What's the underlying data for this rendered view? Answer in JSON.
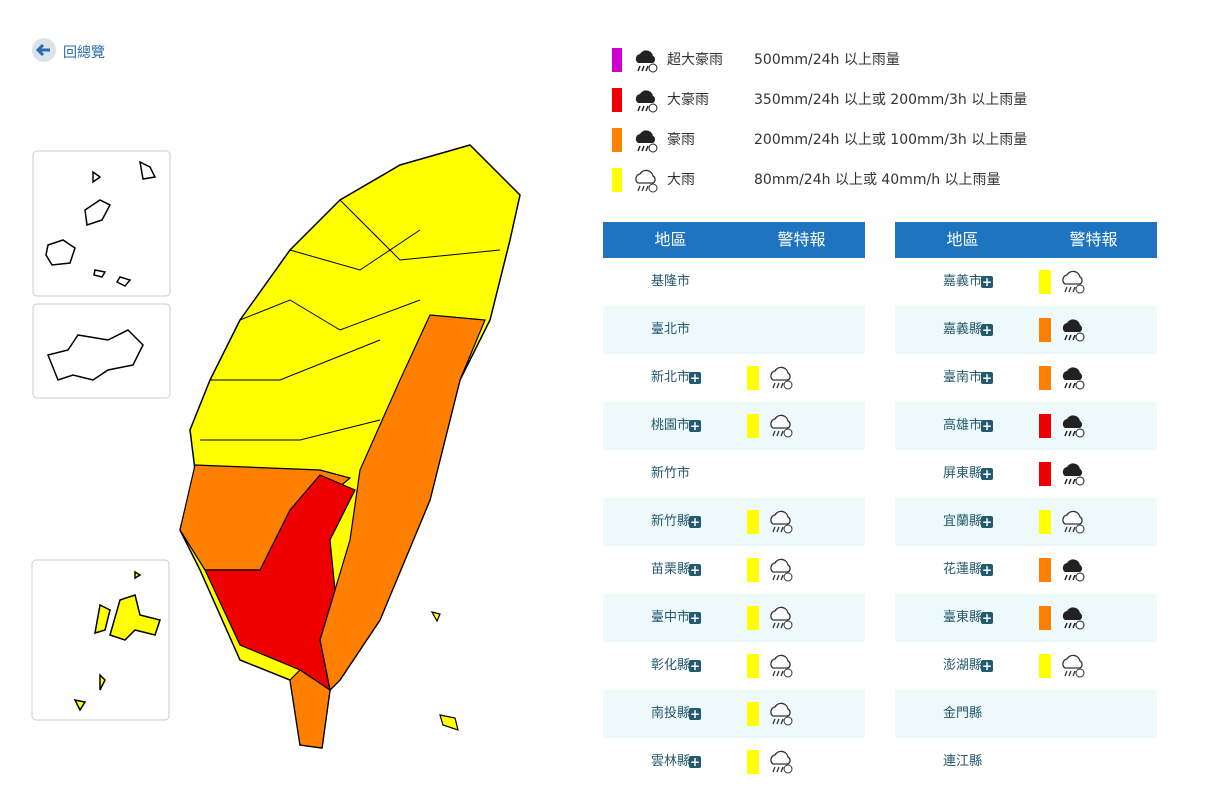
{
  "back_link": "回總覽",
  "legend": [
    {
      "level": "超大豪雨",
      "criteria": "500mm/24h 以上雨量",
      "color": "#cc00cc"
    },
    {
      "level": "大豪雨",
      "criteria": "350mm/24h 以上或 200mm/3h 以上雨量",
      "color": "#ee0000"
    },
    {
      "level": "豪雨",
      "criteria": "200mm/24h 以上或 100mm/3h 以上雨量",
      "color": "#ff8000"
    },
    {
      "level": "大雨",
      "criteria": "80mm/24h 以上或 40mm/h 以上雨量",
      "color": "#ffff00"
    }
  ],
  "tables": [
    {
      "headers": [
        "地區",
        "警特報"
      ],
      "rows": [
        {
          "region": "基隆市"
        },
        {
          "region": "臺北市"
        },
        {
          "region": "新北市",
          "color": "#ffff00"
        },
        {
          "region": "桃園市",
          "color": "#ffff00"
        },
        {
          "region": "新竹市"
        },
        {
          "region": "新竹縣",
          "color": "#ffff00"
        },
        {
          "region": "苗栗縣",
          "color": "#ffff00"
        },
        {
          "region": "臺中市",
          "color": "#ffff00"
        },
        {
          "region": "彰化縣",
          "color": "#ffff00"
        },
        {
          "region": "南投縣",
          "color": "#ffff00"
        },
        {
          "region": "雲林縣",
          "color": "#ffff00"
        }
      ]
    },
    {
      "headers": [
        "地區",
        "警特報"
      ],
      "rows": [
        {
          "region": "嘉義市",
          "color": "#ffff00"
        },
        {
          "region": "嘉義縣",
          "color": "#ff8000"
        },
        {
          "region": "臺南市",
          "color": "#ff8000"
        },
        {
          "region": "高雄市",
          "color": "#ee0000"
        },
        {
          "region": "屏東縣",
          "color": "#ee0000"
        },
        {
          "region": "宜蘭縣",
          "color": "#ffff00"
        },
        {
          "region": "花蓮縣",
          "color": "#ff8000"
        },
        {
          "region": "臺東縣",
          "color": "#ff8000"
        },
        {
          "region": "澎湖縣",
          "color": "#ffff00"
        },
        {
          "region": "金門縣"
        },
        {
          "region": "連江縣"
        }
      ]
    }
  ]
}
